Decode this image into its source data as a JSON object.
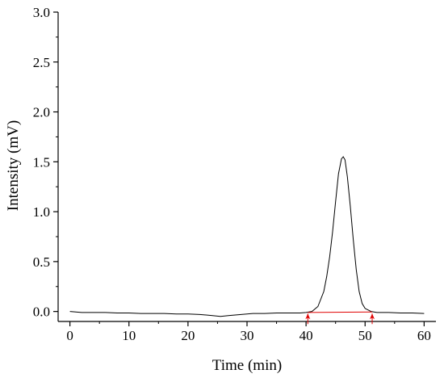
{
  "chart_data": {
    "type": "line",
    "xlabel": "Time (min)",
    "ylabel": "Intensity (mV)",
    "xlim": [
      -2,
      62
    ],
    "ylim": [
      -0.1,
      3.0
    ],
    "xticks": [
      0,
      10,
      20,
      30,
      40,
      50,
      60
    ],
    "yticks": [
      0.0,
      0.5,
      1.0,
      1.5,
      2.0,
      2.5,
      3.0
    ],
    "xtick_labels": [
      "0",
      "10",
      "20",
      "30",
      "40",
      "50",
      "60"
    ],
    "ytick_labels": [
      "0.0",
      "0.5",
      "1.0",
      "1.5",
      "2.0",
      "2.5",
      "3.0"
    ],
    "grid": false,
    "legend": "none",
    "series": [
      {
        "color": "#000000",
        "x": [
          0,
          2,
          4,
          6,
          8,
          10,
          12,
          14,
          16,
          18,
          20,
          22,
          24,
          25.5,
          27,
          29,
          31,
          33,
          35,
          37,
          39,
          40,
          41,
          42,
          43,
          43.5,
          44,
          44.5,
          45,
          45.5,
          46,
          46.3,
          46.6,
          47,
          47.5,
          48,
          48.5,
          49,
          49.5,
          50,
          51,
          52,
          54,
          56,
          58,
          60
        ],
        "y": [
          0.0,
          -0.01,
          -0.01,
          -0.01,
          -0.015,
          -0.015,
          -0.02,
          -0.02,
          -0.02,
          -0.025,
          -0.025,
          -0.03,
          -0.04,
          -0.05,
          -0.04,
          -0.03,
          -0.02,
          -0.02,
          -0.015,
          -0.015,
          -0.015,
          -0.01,
          0.0,
          0.05,
          0.2,
          0.35,
          0.55,
          0.8,
          1.1,
          1.38,
          1.53,
          1.55,
          1.52,
          1.35,
          1.05,
          0.72,
          0.42,
          0.2,
          0.08,
          0.03,
          0.0,
          -0.01,
          -0.01,
          -0.015,
          -0.015,
          -0.02
        ]
      }
    ],
    "integration": {
      "color": "#e00000",
      "baseline_x": [
        40.3,
        51.2
      ],
      "baseline_y": [
        -0.01,
        -0.005
      ],
      "markers_x": [
        40.3,
        51.2
      ]
    }
  }
}
